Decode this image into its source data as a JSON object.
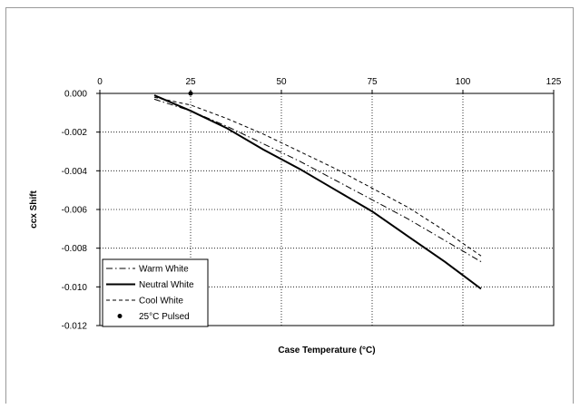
{
  "chart_data": {
    "type": "line",
    "title": "",
    "xlabel": "Case Temperature (°C)",
    "ylabel": "ccx Shift",
    "xlim": [
      0,
      125
    ],
    "ylim": [
      -0.012,
      0.0
    ],
    "x_ticks": [
      0,
      25,
      50,
      75,
      100,
      125
    ],
    "x_tick_labels": [
      "0",
      "25",
      "50",
      "75",
      "100",
      "125"
    ],
    "x_axis_position": "top",
    "y_ticks": [
      0.0,
      -0.002,
      -0.004,
      -0.006,
      -0.008,
      -0.01,
      -0.012
    ],
    "y_tick_labels": [
      "0.000",
      "-0.002",
      "-0.004",
      "-0.006",
      "-0.008",
      "-0.010",
      "-0.012"
    ],
    "grid": "dotted",
    "legend_position": "bottom-left",
    "series": [
      {
        "name": "Warm White",
        "style": "dash-dot",
        "color": "#000000",
        "x": [
          15,
          25,
          35,
          45,
          55,
          65,
          75,
          85,
          95,
          105
        ],
        "y": [
          -0.0003,
          -0.0009,
          -0.0017,
          -0.0026,
          -0.0035,
          -0.0045,
          -0.0055,
          -0.0065,
          -0.0076,
          -0.0087
        ]
      },
      {
        "name": "Neutral White",
        "style": "solid",
        "color": "#000000",
        "x": [
          15,
          25,
          35,
          45,
          55,
          65,
          75,
          85,
          95,
          105
        ],
        "y": [
          -0.0001,
          -0.0009,
          -0.0018,
          -0.0029,
          -0.0039,
          -0.005,
          -0.0061,
          -0.0074,
          -0.0087,
          -0.0101
        ]
      },
      {
        "name": "Cool White",
        "style": "dashed",
        "color": "#000000",
        "x": [
          15,
          25,
          35,
          45,
          55,
          65,
          75,
          85,
          95,
          105
        ],
        "y": [
          -0.0002,
          -0.0006,
          -0.0013,
          -0.0021,
          -0.003,
          -0.0039,
          -0.0049,
          -0.0059,
          -0.0071,
          -0.0084
        ]
      },
      {
        "name": "25°C Pulsed",
        "style": "marker",
        "color": "#000000",
        "x": [
          25
        ],
        "y": [
          0.0
        ]
      }
    ]
  }
}
